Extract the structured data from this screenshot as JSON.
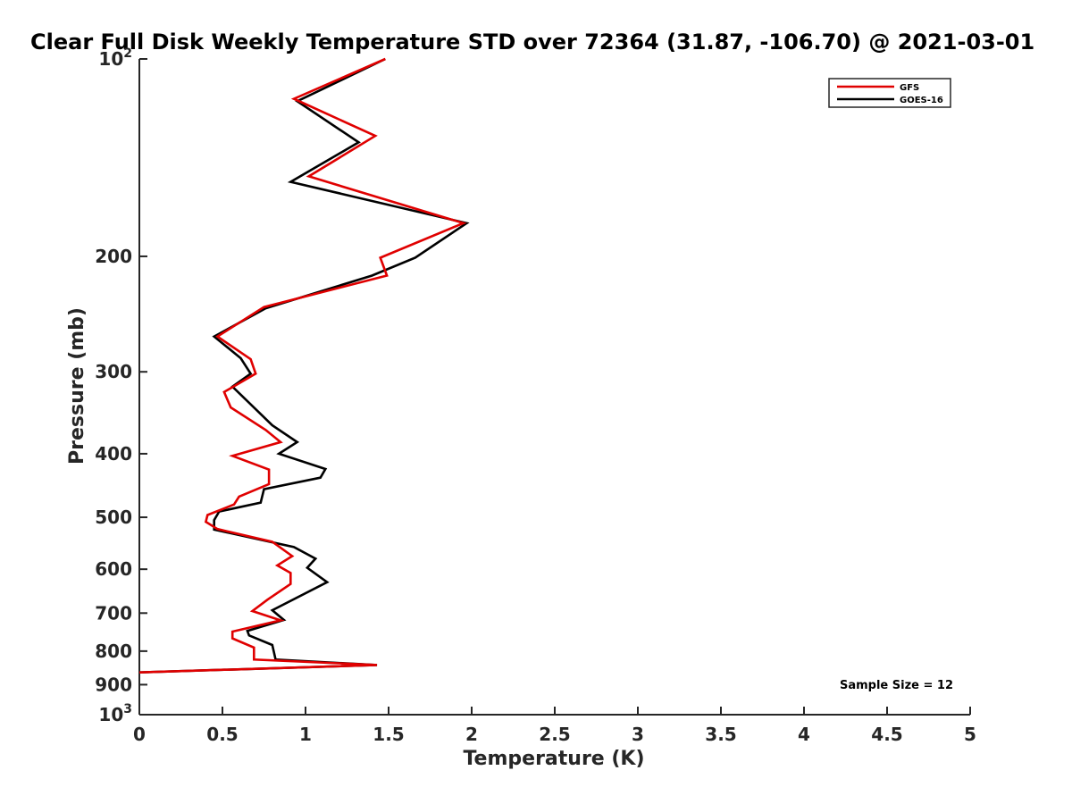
{
  "chart_data": {
    "type": "line",
    "title": "Clear Full Disk Weekly Temperature STD over 72364 (31.87, -106.70) @ 2021-03-01",
    "xlabel": "Temperature (K)",
    "ylabel": "Pressure (mb)",
    "xlim": [
      0,
      5
    ],
    "ylim": [
      100,
      1000
    ],
    "y_scale": "log",
    "y_reversed": true,
    "x_ticks": [
      0,
      0.5,
      1,
      1.5,
      2,
      2.5,
      3,
      3.5,
      4,
      4.5,
      5
    ],
    "x_tick_labels": [
      "0",
      "0.5",
      "1",
      "1.5",
      "2",
      "2.5",
      "3",
      "3.5",
      "4",
      "4.5",
      "5"
    ],
    "y_ticks": [
      100,
      200,
      300,
      400,
      500,
      600,
      700,
      800,
      900,
      1000
    ],
    "y_tick_labels": [
      {
        "base": "10",
        "exp": "2"
      },
      {
        "base": "200",
        "exp": ""
      },
      {
        "base": "300",
        "exp": ""
      },
      {
        "base": "400",
        "exp": ""
      },
      {
        "base": "500",
        "exp": ""
      },
      {
        "base": "600",
        "exp": ""
      },
      {
        "base": "700",
        "exp": ""
      },
      {
        "base": "800",
        "exp": ""
      },
      {
        "base": "900",
        "exp": ""
      },
      {
        "base": "10",
        "exp": "3"
      }
    ],
    "grid": false,
    "legend_position": "top-right",
    "series": [
      {
        "name": "GFS",
        "color": "#e00000",
        "points": [
          [
            1.48,
            100
          ],
          [
            0.93,
            115
          ],
          [
            1.42,
            131
          ],
          [
            1.02,
            151
          ],
          [
            1.95,
            178
          ],
          [
            1.45,
            201
          ],
          [
            1.49,
            214
          ],
          [
            0.75,
            239
          ],
          [
            0.47,
            265
          ],
          [
            0.67,
            287
          ],
          [
            0.7,
            302
          ],
          [
            0.51,
            322
          ],
          [
            0.55,
            340
          ],
          [
            0.76,
            368
          ],
          [
            0.85,
            384
          ],
          [
            0.56,
            403
          ],
          [
            0.78,
            423
          ],
          [
            0.78,
            445
          ],
          [
            0.6,
            465
          ],
          [
            0.57,
            478
          ],
          [
            0.41,
            496
          ],
          [
            0.4,
            508
          ],
          [
            0.47,
            521
          ],
          [
            0.8,
            545
          ],
          [
            0.92,
            573
          ],
          [
            0.83,
            592
          ],
          [
            0.91,
            608
          ],
          [
            0.91,
            632
          ],
          [
            0.77,
            668
          ],
          [
            0.68,
            695
          ],
          [
            0.85,
            718
          ],
          [
            0.56,
            747
          ],
          [
            0.56,
            765
          ],
          [
            0.69,
            790
          ],
          [
            0.69,
            824
          ],
          [
            1.43,
            840
          ],
          [
            0.0,
            862
          ]
        ]
      },
      {
        "name": "GOES-16",
        "color": "#000000",
        "points": [
          [
            1.48,
            100
          ],
          [
            0.95,
            116
          ],
          [
            1.32,
            134
          ],
          [
            0.91,
            154
          ],
          [
            1.97,
            178
          ],
          [
            1.66,
            201
          ],
          [
            1.4,
            214
          ],
          [
            0.76,
            240
          ],
          [
            0.45,
            265
          ],
          [
            0.61,
            286
          ],
          [
            0.67,
            302
          ],
          [
            0.56,
            316
          ],
          [
            0.8,
            362
          ],
          [
            0.95,
            384
          ],
          [
            0.84,
            400
          ],
          [
            1.12,
            422
          ],
          [
            1.09,
            435
          ],
          [
            0.75,
            453
          ],
          [
            0.73,
            475
          ],
          [
            0.48,
            490
          ],
          [
            0.45,
            505
          ],
          [
            0.45,
            522
          ],
          [
            0.93,
            555
          ],
          [
            1.06,
            578
          ],
          [
            1.01,
            597
          ],
          [
            1.13,
            628
          ],
          [
            0.8,
            693
          ],
          [
            0.87,
            717
          ],
          [
            0.65,
            745
          ],
          [
            0.66,
            757
          ],
          [
            0.8,
            783
          ],
          [
            0.82,
            824
          ],
          [
            1.43,
            840
          ],
          [
            0.0,
            862
          ]
        ]
      }
    ],
    "annotations": [
      {
        "text": "Sample Size = 12",
        "position": "bottom-right"
      }
    ]
  }
}
